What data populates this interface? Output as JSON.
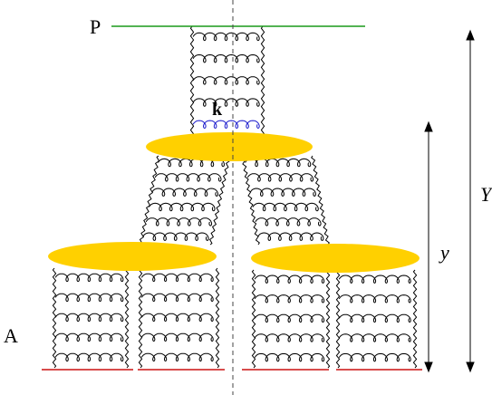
{
  "labels": {
    "top": "P",
    "bottom": "A",
    "gluon": "k",
    "rapidity_total": "Y",
    "rapidity_partial": "y"
  },
  "colors": {
    "top_line": "#1a9a1a",
    "bottom_line": "#cc1111",
    "blob": "#ffd000",
    "k_gluon": "#1a1acc",
    "ink": "#000000",
    "cut_line": "#444444"
  }
}
